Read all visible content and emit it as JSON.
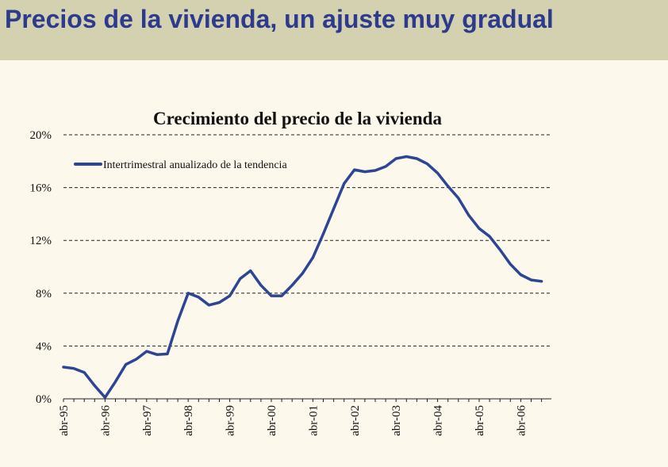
{
  "page": {
    "title": "Precios de la vivienda, un ajuste muy gradual"
  },
  "colors": {
    "header_bg": "#d3d1b0",
    "title": "#2e3a8c",
    "series": "#2e4594",
    "background": "#fcf8ec"
  },
  "chart_data": {
    "type": "line",
    "title": "Crecimiento del precio de la vivienda",
    "xlabel": "",
    "ylabel": "",
    "ylim": [
      0,
      20
    ],
    "yticks": [
      0,
      4,
      8,
      12,
      16,
      20
    ],
    "ytick_labels": [
      "0%",
      "4%",
      "8%",
      "12%",
      "16%",
      "20%"
    ],
    "xtick_labels": [
      "abr-95",
      "abr-96",
      "abr-97",
      "abr-98",
      "abr-99",
      "abr-00",
      "abr-01",
      "abr-02",
      "abr-03",
      "abr-04",
      "abr-05",
      "abr-06"
    ],
    "grid": "horizontal dashed",
    "legend_position": "top-left",
    "series": [
      {
        "name": "Intertrimestral anualizado de la tendencia",
        "x": [
          "abr-95",
          "jul-95",
          "oct-95",
          "ene-96",
          "abr-96",
          "jul-96",
          "oct-96",
          "ene-97",
          "abr-97",
          "jul-97",
          "oct-97",
          "ene-98",
          "abr-98",
          "jul-98",
          "oct-98",
          "ene-99",
          "abr-99",
          "jul-99",
          "oct-99",
          "ene-00",
          "abr-00",
          "jul-00",
          "oct-00",
          "ene-01",
          "abr-01",
          "jul-01",
          "oct-01",
          "ene-02",
          "abr-02",
          "jul-02",
          "oct-02",
          "ene-03",
          "abr-03",
          "jul-03",
          "oct-03",
          "ene-04",
          "abr-04",
          "jul-04",
          "oct-04",
          "ene-05",
          "abr-05",
          "jul-05",
          "oct-05",
          "ene-06",
          "abr-06",
          "jul-06",
          "oct-06"
        ],
        "values": [
          2.4,
          2.3,
          2.0,
          1.0,
          0.1,
          1.3,
          2.6,
          3.0,
          3.6,
          3.35,
          3.4,
          5.9,
          8.0,
          7.7,
          7.1,
          7.3,
          7.8,
          9.1,
          9.7,
          8.6,
          7.8,
          7.8,
          8.6,
          9.5,
          10.7,
          12.5,
          14.4,
          16.3,
          17.35,
          17.2,
          17.3,
          17.6,
          18.2,
          18.35,
          18.2,
          17.8,
          17.1,
          16.1,
          15.2,
          13.9,
          12.9,
          12.3,
          11.3,
          10.2,
          9.4,
          9.0,
          8.9
        ]
      }
    ]
  }
}
